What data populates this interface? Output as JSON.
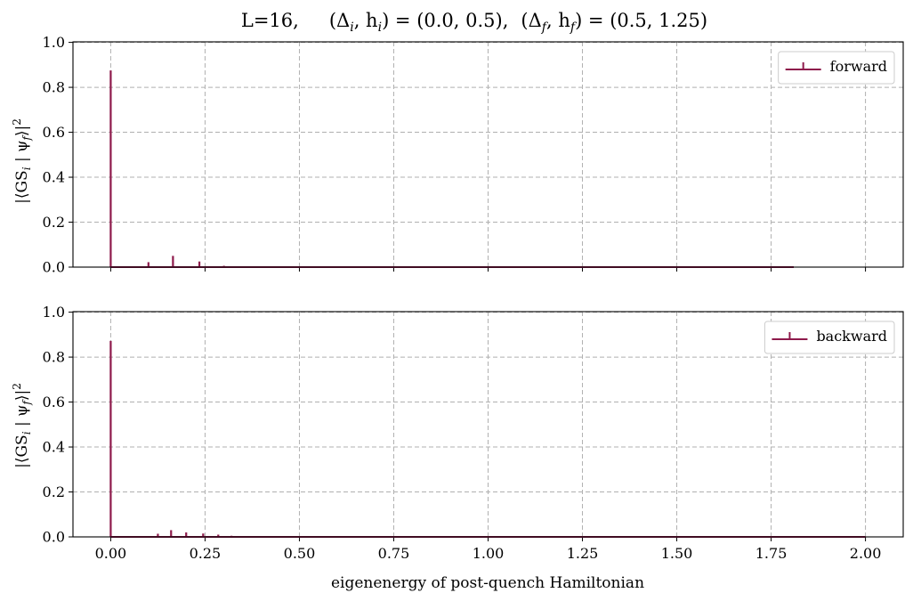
{
  "chart_data": {
    "title": "L=16,     (Δ_i, h_i) = (0.0, 0.5),   (Δ_f, h_f) = (0.5, 1.25)",
    "title_parts": {
      "prefix": "L=16,",
      "delta": "Δ",
      "sub_i": "i",
      "sub_f": "f",
      "h": "h",
      "initial_values": "(0.0, 0.5),",
      "final_values": "(0.5, 1.25)"
    },
    "ylabel": {
      "open": "|⟨GS",
      "sub_i": "i",
      "mid": " | ψ",
      "sub_f": "f",
      "close": "⟩|",
      "sup": "2"
    },
    "xlabel": "eigenenergy of post-quench Hamiltonian",
    "color": "#8e1a4b",
    "xlim": [
      -0.1,
      2.1
    ],
    "x_ticks": [
      0.0,
      0.25,
      0.5,
      0.75,
      1.0,
      1.25,
      1.5,
      1.75,
      2.0
    ],
    "x_tick_labels": [
      "0.00",
      "0.25",
      "0.50",
      "0.75",
      "1.00",
      "1.25",
      "1.50",
      "1.75",
      "2.00"
    ],
    "grid": true,
    "panels": [
      {
        "type": "stem",
        "legend": "forward",
        "legend_position": "top-right",
        "ylim": [
          0,
          1.0
        ],
        "y_ticks": [
          0.0,
          0.2,
          0.4,
          0.6,
          0.8,
          1.0
        ],
        "y_tick_labels": [
          "0.0",
          "0.2",
          "0.4",
          "0.6",
          "0.8",
          "1.0"
        ],
        "baseline_x": [
          0.0,
          1.81
        ],
        "x": [
          0.0,
          0.1,
          0.165,
          0.235,
          0.3
        ],
        "y": [
          0.875,
          0.022,
          0.05,
          0.025,
          0.006
        ]
      },
      {
        "type": "stem",
        "legend": "backward",
        "legend_position": "top-right",
        "ylim": [
          0,
          1.0
        ],
        "y_ticks": [
          0.0,
          0.2,
          0.4,
          0.6,
          0.8,
          1.0
        ],
        "y_tick_labels": [
          "0.0",
          "0.2",
          "0.4",
          "0.6",
          "0.8",
          "1.0"
        ],
        "baseline_x": [
          0.0,
          2.0
        ],
        "x": [
          0.0,
          0.125,
          0.16,
          0.2,
          0.245,
          0.285,
          0.32
        ],
        "y": [
          0.872,
          0.014,
          0.03,
          0.02,
          0.015,
          0.01,
          0.005
        ]
      }
    ]
  }
}
